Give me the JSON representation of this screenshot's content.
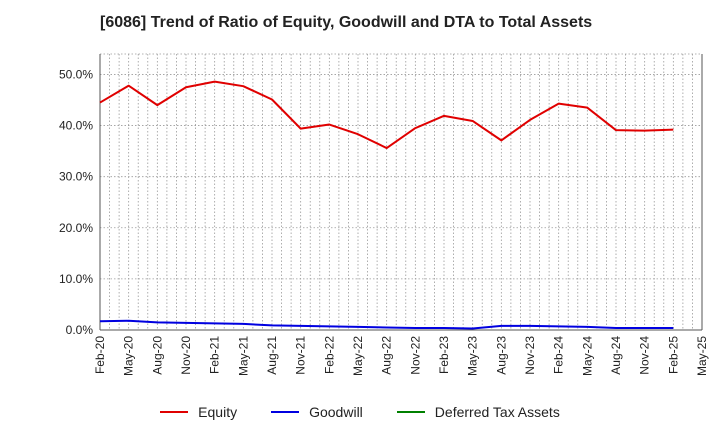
{
  "title": "[6086]  Trend of Ratio of Equity, Goodwill and DTA to Total Assets",
  "chart_data": {
    "type": "line",
    "title": "[6086]  Trend of Ratio of Equity, Goodwill and DTA to Total Assets",
    "xlabel": "",
    "ylabel": "",
    "x_labels": [
      "Feb-20",
      "May-20",
      "Aug-20",
      "Nov-20",
      "Feb-21",
      "May-21",
      "Aug-21",
      "Nov-21",
      "Feb-22",
      "May-22",
      "Aug-22",
      "Nov-22",
      "Feb-23",
      "May-23",
      "Aug-23",
      "Nov-23",
      "Feb-24",
      "May-24",
      "Aug-24",
      "Nov-24",
      "Feb-25",
      "May-25"
    ],
    "y_ticks": [
      "0.0%",
      "10.0%",
      "20.0%",
      "30.0%",
      "40.0%",
      "50.0%"
    ],
    "ylim": [
      0,
      54
    ],
    "grid": true,
    "legend_position": "bottom",
    "series": [
      {
        "name": "Equity",
        "color": "#e00000",
        "values": [
          44.5,
          47.8,
          44.0,
          47.5,
          48.6,
          47.7,
          45.1,
          39.4,
          40.2,
          38.3,
          35.6,
          39.5,
          41.9,
          40.9,
          37.1,
          41.1,
          44.3,
          43.5,
          39.1,
          39.0,
          39.2,
          null
        ]
      },
      {
        "name": "Goodwill",
        "color": "#0000e0",
        "values": [
          1.7,
          1.8,
          1.5,
          1.4,
          1.3,
          1.2,
          0.9,
          0.8,
          0.7,
          0.6,
          0.5,
          0.4,
          0.4,
          0.3,
          0.8,
          0.8,
          0.7,
          0.6,
          0.4,
          0.4,
          0.4,
          null
        ]
      },
      {
        "name": "Deferred Tax Assets",
        "color": "#008000",
        "values": [
          null,
          null,
          null,
          null,
          null,
          null,
          null,
          null,
          null,
          null,
          null,
          null,
          null,
          null,
          null,
          null,
          null,
          null,
          null,
          null,
          null,
          null
        ]
      }
    ]
  },
  "legend": [
    {
      "label": "Equity",
      "color": "#e00000"
    },
    {
      "label": "Goodwill",
      "color": "#0000e0"
    },
    {
      "label": "Deferred Tax Assets",
      "color": "#008000"
    }
  ]
}
